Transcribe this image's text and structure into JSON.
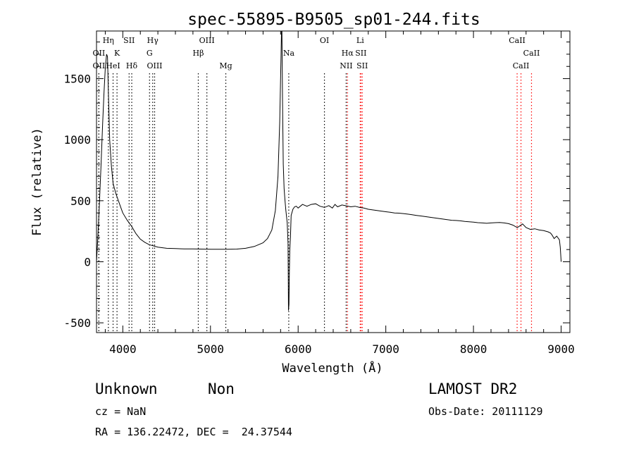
{
  "chart_data": {
    "type": "line",
    "title": "spec-55895-B9505_sp01-244.fits",
    "xlabel": "Wavelength (Å)",
    "ylabel": "Flux (relative)",
    "xlim": [
      3700,
      9100
    ],
    "ylim": [
      -580,
      1890
    ],
    "x_ticks": [
      4000,
      5000,
      6000,
      7000,
      8000,
      9000
    ],
    "y_ticks": [
      -500,
      0,
      500,
      1000,
      1500
    ],
    "grid": false,
    "line_color": "#000000",
    "line_marker_color": "#ff0000",
    "series": [
      {
        "x": [
          3700,
          3715,
          3730,
          3750,
          3770,
          3785,
          3800,
          3815,
          3825,
          3835,
          3850,
          3870,
          3890,
          3920,
          3950,
          3980,
          4000,
          4050,
          4100,
          4150,
          4200,
          4250,
          4300,
          4400,
          4500,
          4600,
          4700,
          4800,
          4900,
          5000,
          5100,
          5200,
          5300,
          5400,
          5500,
          5600,
          5650,
          5700,
          5740,
          5770,
          5790,
          5800,
          5810,
          5815,
          5822,
          5830,
          5840,
          5850,
          5860,
          5875,
          5885,
          5890,
          5895,
          5900,
          5905,
          5912,
          5920,
          5940,
          5960,
          5980,
          6000,
          6050,
          6100,
          6150,
          6200,
          6250,
          6300,
          6350,
          6390,
          6420,
          6450,
          6500,
          6550,
          6600,
          6650,
          6700,
          6750,
          6800,
          6850,
          6900,
          6950,
          7000,
          7050,
          7100,
          7150,
          7200,
          7250,
          7300,
          7350,
          7400,
          7450,
          7500,
          7550,
          7600,
          7650,
          7700,
          7750,
          7800,
          7850,
          7900,
          7950,
          8000,
          8050,
          8100,
          8150,
          8200,
          8250,
          8300,
          8350,
          8400,
          8450,
          8500,
          8530,
          8560,
          8600,
          8650,
          8700,
          8750,
          8800,
          8850,
          8880,
          8900,
          8920,
          8950,
          8980,
          8990,
          9000
        ],
        "y": [
          0,
          200,
          420,
          760,
          1130,
          1380,
          1580,
          1700,
          1680,
          1400,
          1000,
          780,
          640,
          560,
          500,
          440,
          400,
          340,
          290,
          230,
          185,
          160,
          140,
          120,
          110,
          108,
          105,
          105,
          104,
          103,
          102,
          103,
          104,
          110,
          125,
          155,
          190,
          260,
          420,
          700,
          1150,
          1500,
          1890,
          1890,
          1300,
          800,
          600,
          500,
          420,
          320,
          150,
          -400,
          -350,
          -80,
          100,
          200,
          380,
          430,
          450,
          455,
          440,
          470,
          455,
          470,
          475,
          455,
          445,
          460,
          440,
          470,
          450,
          465,
          458,
          450,
          455,
          445,
          440,
          430,
          425,
          420,
          415,
          410,
          405,
          400,
          398,
          395,
          390,
          385,
          380,
          375,
          370,
          365,
          360,
          355,
          350,
          345,
          340,
          338,
          335,
          330,
          328,
          325,
          320,
          318,
          315,
          318,
          320,
          322,
          318,
          312,
          300,
          280,
          295,
          310,
          280,
          265,
          270,
          260,
          255,
          245,
          235,
          215,
          190,
          210,
          180,
          120,
          0
        ]
      }
    ],
    "lines": [
      {
        "label": "OII",
        "x": 3727,
        "row": 2,
        "color": "#000000"
      },
      {
        "label": "OII",
        "x": 3727,
        "row": 3,
        "color": "#000000"
      },
      {
        "label": "Hη",
        "x": 3835,
        "row": 1,
        "color": "#000000"
      },
      {
        "label": "HeI",
        "x": 3889,
        "row": 3,
        "color": "#000000"
      },
      {
        "label": "K",
        "x": 3934,
        "row": 2,
        "color": "#000000"
      },
      {
        "label": "SII",
        "x": 4072,
        "row": 1,
        "color": "#000000"
      },
      {
        "label": "Hδ",
        "x": 4102,
        "row": 3,
        "color": "#000000"
      },
      {
        "label": "Hγ",
        "x": 4341,
        "row": 1,
        "color": "#000000"
      },
      {
        "label": "G",
        "x": 4305,
        "row": 2,
        "color": "#000000"
      },
      {
        "label": "OIII",
        "x": 4363,
        "row": 3,
        "color": "#000000"
      },
      {
        "label": "OIII",
        "x": 4959,
        "row": 1,
        "color": "#000000"
      },
      {
        "label": "Hβ",
        "x": 4861,
        "row": 2,
        "color": "#000000"
      },
      {
        "label": "Mg",
        "x": 5175,
        "row": 3,
        "color": "#000000"
      },
      {
        "label": "Na",
        "x": 5893,
        "row": 2,
        "color": "#000000"
      },
      {
        "label": "OI",
        "x": 6300,
        "row": 1,
        "color": "#000000"
      },
      {
        "label": "Hα",
        "x": 6563,
        "row": 2,
        "color": "#ff0000"
      },
      {
        "label": "NII",
        "x": 6548,
        "row": 3,
        "color": "#000000"
      },
      {
        "label": "Li",
        "x": 6708,
        "row": 1,
        "color": "#ff0000"
      },
      {
        "label": "SII",
        "x": 6716,
        "row": 2,
        "color": "#ff0000"
      },
      {
        "label": "SII",
        "x": 6731,
        "row": 3,
        "color": "#ff0000"
      },
      {
        "label": "CaII",
        "x": 8498,
        "row": 1,
        "color": "#ff0000"
      },
      {
        "label": "CaII",
        "x": 8662,
        "row": 2,
        "color": "#ff0000"
      },
      {
        "label": "CaII",
        "x": 8542,
        "row": 3,
        "color": "#ff0000"
      }
    ]
  },
  "footer": {
    "object_class": "Unknown",
    "subclass": "Non",
    "survey": "LAMOST DR2",
    "redshift": "cz = NaN",
    "obs_date": "Obs-Date: 20111129",
    "coords": "RA = 136.22472, DEC =  24.37544"
  }
}
